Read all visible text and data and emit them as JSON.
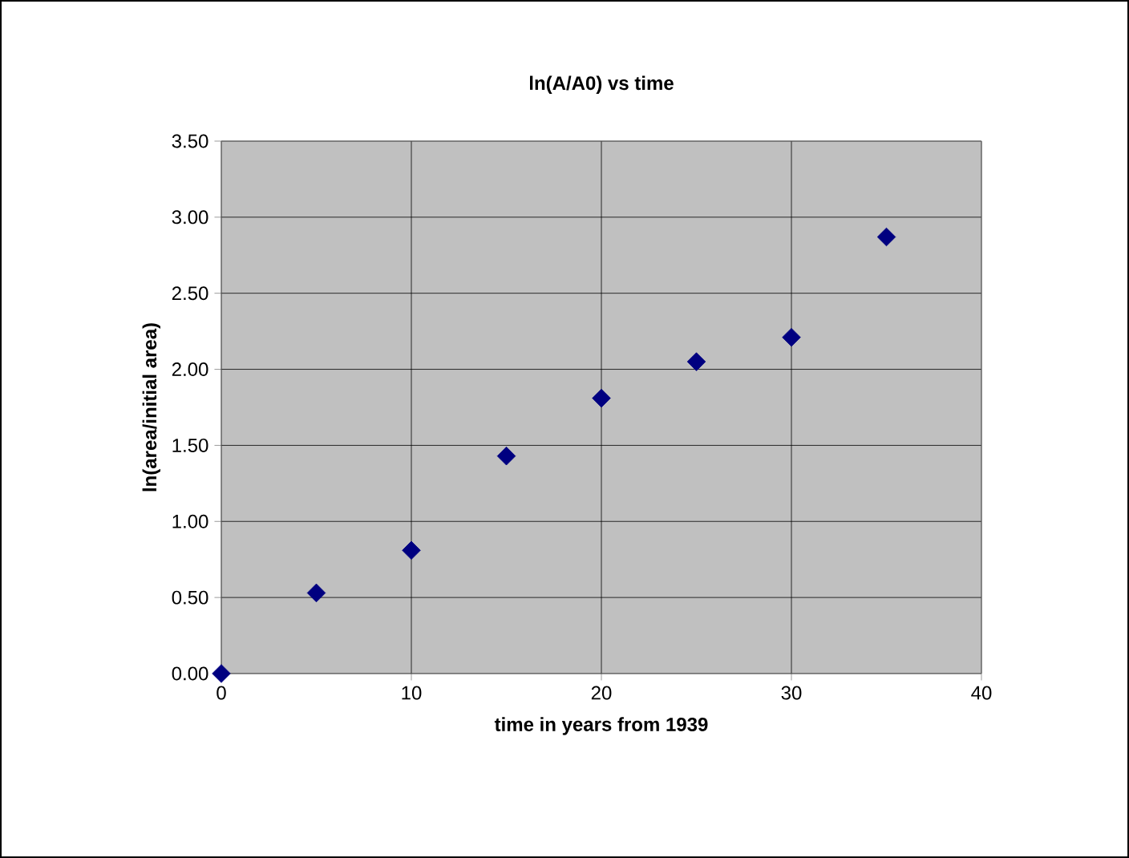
{
  "chart_data": {
    "type": "scatter",
    "title": "ln(A/A0) vs time",
    "xlabel": "time in years from 1939",
    "ylabel": "ln(area/initial area)",
    "x": [
      0,
      5,
      10,
      15,
      20,
      25,
      30,
      35
    ],
    "series": [
      {
        "color": "#000080",
        "values": [
          0,
          0.53,
          0.81,
          1.43,
          1.81,
          2.05,
          2.21,
          2.87
        ]
      }
    ],
    "xlim": [
      0,
      40
    ],
    "xticks": [
      0,
      10,
      20,
      30,
      40
    ],
    "ylim": [
      0,
      3.5
    ],
    "yticks": [
      {
        "value": 0,
        "label": "0.00"
      },
      {
        "value": 0.5,
        "label": "0.50"
      },
      {
        "value": 1,
        "label": "1.00"
      },
      {
        "value": 1.5,
        "label": "1.50"
      },
      {
        "value": 2,
        "label": "2.00"
      },
      {
        "value": 2.5,
        "label": "2.50"
      },
      {
        "value": 3,
        "label": "3.00"
      },
      {
        "value": 3.5,
        "label": "3.50"
      }
    ],
    "grid": true,
    "marker": "diamond"
  }
}
